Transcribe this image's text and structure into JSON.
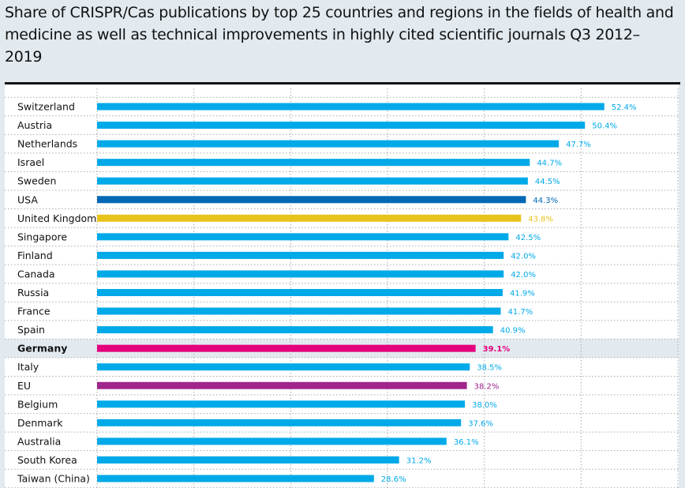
{
  "chart_data": {
    "type": "bar",
    "orientation": "horizontal",
    "title": "Share of CRISPR/Cas publications by top 25 countries and regions in the fields of health and medicine as well as technical improvements in highly cited scientific journals Q3 2012–2019",
    "xlim": [
      0,
      60
    ],
    "grid": true,
    "categories": [
      "Switzerland",
      "Austria",
      "Netherlands",
      "Israel",
      "Sweden",
      "USA",
      "United Kingdom",
      "Singapore",
      "Finland",
      "Canada",
      "Russia",
      "France",
      "Spain",
      "Germany",
      "Italy",
      "EU",
      "Belgium",
      "Denmark",
      "Australia",
      "South Korea",
      "Taiwan (China)"
    ],
    "values": [
      52.4,
      50.4,
      47.7,
      44.7,
      44.5,
      44.3,
      43.8,
      42.5,
      42.0,
      42.0,
      41.9,
      41.7,
      40.9,
      39.1,
      38.5,
      38.2,
      38.0,
      37.6,
      36.1,
      31.2,
      28.6
    ],
    "value_labels": [
      "52.4%",
      "50.4%",
      "47.7%",
      "44.7%",
      "44.5%",
      "44.3%",
      "43.8%",
      "42.5%",
      "42.0%",
      "42.0%",
      "41.9%",
      "41.7%",
      "40.9%",
      "39.1%",
      "38.5%",
      "38.2%",
      "38.0%",
      "37.6%",
      "36.1%",
      "31.2%",
      "28.6%"
    ],
    "colors": {
      "default": "#00a9e8",
      "USA": "#0068b4",
      "United Kingdom": "#e8c31c",
      "Germany": "#e5007d",
      "EU": "#a0258a"
    },
    "highlighted_category": "Germany"
  }
}
